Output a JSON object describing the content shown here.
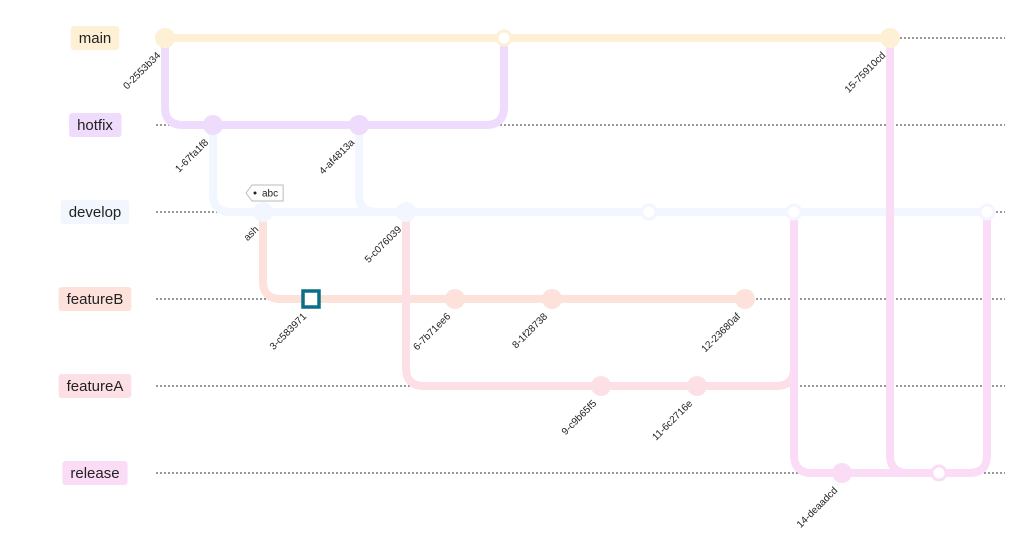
{
  "branches": [
    {
      "id": "main",
      "label": "main",
      "color": "#fdf0d4"
    },
    {
      "id": "hotfix",
      "label": "hotfix",
      "color": "#efdbfc"
    },
    {
      "id": "develop",
      "label": "develop",
      "color": "#f2f6fe"
    },
    {
      "id": "featureB",
      "label": "featureB",
      "color": "#fde2dc"
    },
    {
      "id": "featureA",
      "label": "featureA",
      "color": "#fde0e6"
    },
    {
      "id": "release",
      "label": "release",
      "color": "#fbdcf7"
    }
  ],
  "commits": [
    {
      "id": "0-2553b34",
      "branch": "main",
      "label": "0-2553b34",
      "kind": "normal"
    },
    {
      "id": "1-67fa1f8",
      "branch": "hotfix",
      "label": "1-67fa1f8",
      "kind": "normal"
    },
    {
      "id": "2-ash",
      "branch": "develop",
      "label": "ash",
      "kind": "normal",
      "tag": "abc"
    },
    {
      "id": "3-c583971",
      "branch": "featureB",
      "label": "3-c583971",
      "kind": "highlight"
    },
    {
      "id": "4-af4813a",
      "branch": "hotfix",
      "label": "4-af4813a",
      "kind": "normal"
    },
    {
      "id": "merge-hotfix-main",
      "branch": "main",
      "label": "",
      "kind": "merge"
    },
    {
      "id": "5-c076039",
      "branch": "develop",
      "label": "5-c076039",
      "kind": "normal"
    },
    {
      "id": "6-7b71ee6",
      "branch": "featureB",
      "label": "6-7b71ee6",
      "kind": "normal"
    },
    {
      "id": "8-1f28738",
      "branch": "featureB",
      "label": "8-1f28738",
      "kind": "normal"
    },
    {
      "id": "9-c9b65f5",
      "branch": "featureA",
      "label": "9-c9b65f5",
      "kind": "normal"
    },
    {
      "id": "merge-hotfix-develop",
      "branch": "develop",
      "label": "",
      "kind": "merge"
    },
    {
      "id": "11-6c2716e",
      "branch": "featureA",
      "label": "11-6c2716e",
      "kind": "normal"
    },
    {
      "id": "12-23680af",
      "branch": "featureB",
      "label": "12-23680af",
      "kind": "normal"
    },
    {
      "id": "merge-featureA-develop",
      "branch": "develop",
      "label": "",
      "kind": "merge"
    },
    {
      "id": "14-deaadcd",
      "branch": "release",
      "label": "14-deaadcd",
      "kind": "normal"
    },
    {
      "id": "15-75910cd",
      "branch": "main",
      "label": "15-75910cd",
      "kind": "normal"
    },
    {
      "id": "merge-main-release",
      "branch": "release",
      "label": "",
      "kind": "merge"
    },
    {
      "id": "merge-release-develop",
      "branch": "develop",
      "label": "",
      "kind": "merge"
    }
  ],
  "edges": [
    {
      "from": "0-2553b34",
      "to": "merge-hotfix-main"
    },
    {
      "from": "merge-hotfix-main",
      "to": "15-75910cd"
    },
    {
      "from": "0-2553b34",
      "to": "1-67fa1f8"
    },
    {
      "from": "1-67fa1f8",
      "to": "4-af4813a"
    },
    {
      "from": "4-af4813a",
      "to": "merge-hotfix-main"
    },
    {
      "from": "4-af4813a",
      "to": "merge-hotfix-develop"
    },
    {
      "from": "1-67fa1f8",
      "to": "5-c076039"
    },
    {
      "from": "5-c076039",
      "to": "merge-hotfix-develop"
    },
    {
      "from": "merge-hotfix-develop",
      "to": "merge-featureA-develop"
    },
    {
      "from": "merge-featureA-develop",
      "to": "merge-release-develop"
    },
    {
      "from": "2-ash",
      "to": "3-c583971"
    },
    {
      "from": "3-c583971",
      "to": "6-7b71ee6"
    },
    {
      "from": "6-7b71ee6",
      "to": "8-1f28738"
    },
    {
      "from": "8-1f28738",
      "to": "12-23680af"
    },
    {
      "from": "5-c076039",
      "to": "9-c9b65f5"
    },
    {
      "from": "9-c9b65f5",
      "to": "11-6c2716e"
    },
    {
      "from": "11-6c2716e",
      "to": "merge-featureA-develop"
    },
    {
      "from": "merge-featureA-develop",
      "to": "14-deaadcd"
    },
    {
      "from": "14-deaadcd",
      "to": "merge-main-release"
    },
    {
      "from": "15-75910cd",
      "to": "merge-main-release"
    },
    {
      "from": "merge-main-release",
      "to": "merge-release-develop"
    }
  ]
}
